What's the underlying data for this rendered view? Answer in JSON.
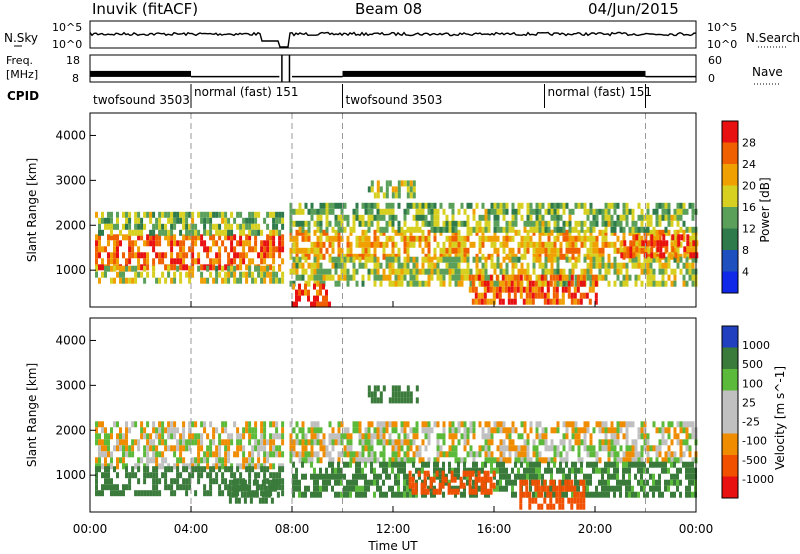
{
  "header": {
    "station": "Inuvik (fitACF)",
    "beam": "Beam 08",
    "date": "04/Jun/2015"
  },
  "strips": {
    "nsky": {
      "label": "N.Sky",
      "ticks": [
        "10^5",
        "10^0"
      ],
      "right_label": "N.Search",
      "right_ticks": [
        "10^5",
        "10^0"
      ]
    },
    "freq": {
      "label_lines": [
        "Freq.",
        "[MHz]"
      ],
      "ticks": [
        "18",
        "8"
      ],
      "right_label": "Nave",
      "right_ticks": [
        "60",
        "0"
      ]
    },
    "cpid": {
      "label": "CPID"
    }
  },
  "chart_data": [
    {
      "type": "table",
      "name": "cpid_segments",
      "rows": [
        {
          "text": "twofsound 3503",
          "start_hour": 0,
          "end_hour": 4
        },
        {
          "text": "normal (fast) 151",
          "start_hour": 4,
          "end_hour": 7.8
        },
        {
          "text": "twofsound 3503",
          "start_hour": 10,
          "end_hour": 18
        },
        {
          "text": "normal (fast) 151",
          "start_hour": 18,
          "end_hour": 22
        }
      ]
    },
    {
      "type": "line",
      "name": "frequency",
      "x_unit": "hour UT",
      "segments": [
        {
          "x": [
            0,
            4
          ],
          "y": 11,
          "style": "dense"
        },
        {
          "x": [
            4,
            7.5
          ],
          "y": 10,
          "style": "flat"
        },
        {
          "x": [
            8,
            10
          ],
          "y": 10,
          "style": "flat"
        },
        {
          "x": [
            10,
            22
          ],
          "y": 11,
          "style": "dense"
        },
        {
          "x": [
            22,
            24
          ],
          "y": 10,
          "style": "flat"
        }
      ],
      "ylim": [
        8,
        18
      ]
    },
    {
      "type": "heatmap",
      "name": "power",
      "ylabel": "Slant Range [km]",
      "xlim": [
        0,
        24
      ],
      "ylim": [
        180,
        4500
      ],
      "yticks": [
        1000,
        2000,
        3000,
        4000
      ],
      "colorbar": {
        "label": "Power [dB]",
        "ticks": [
          "4",
          "8",
          "12",
          "16",
          "20",
          "24",
          "28"
        ],
        "range": [
          0,
          30
        ]
      },
      "data_gap_hours": [
        7.6,
        7.9
      ],
      "bands": [
        {
          "x": [
            0.2,
            7.6
          ],
          "r": [
            1100,
            1800
          ],
          "value": 24
        },
        {
          "x": [
            0.2,
            7.6
          ],
          "r": [
            1800,
            2300
          ],
          "value": 14
        },
        {
          "x": [
            0.2,
            7.6
          ],
          "r": [
            700,
            1100
          ],
          "value": 16
        },
        {
          "x": [
            7.9,
            24
          ],
          "r": [
            1300,
            1900
          ],
          "value": 20
        },
        {
          "x": [
            7.9,
            24
          ],
          "r": [
            1900,
            2500
          ],
          "value": 14
        },
        {
          "x": [
            7.9,
            24
          ],
          "r": [
            700,
            1300
          ],
          "value": 16
        },
        {
          "x": [
            8.0,
            9.5
          ],
          "r": [
            200,
            700
          ],
          "value": 26
        },
        {
          "x": [
            15.0,
            20.0
          ],
          "r": [
            300,
            900
          ],
          "value": 24
        },
        {
          "x": [
            11.0,
            13.0
          ],
          "r": [
            2600,
            3000
          ],
          "value": 16
        },
        {
          "x": [
            21.0,
            24.0
          ],
          "r": [
            1350,
            1800
          ],
          "value": 26
        }
      ]
    },
    {
      "type": "heatmap",
      "name": "velocity",
      "ylabel": "Slant Range [km]",
      "xlabel": "Time UT",
      "xlim": [
        0,
        24
      ],
      "ylim": [
        180,
        4500
      ],
      "yticks": [
        1000,
        2000,
        3000,
        4000
      ],
      "xticks": [
        "00:00",
        "04:00",
        "08:00",
        "12:00",
        "16:00",
        "20:00",
        "00:00"
      ],
      "colorbar": {
        "label": "Velocity [m s^-1]",
        "ticks": [
          "1000",
          "500",
          "100",
          "25",
          "-25",
          "-100",
          "-500",
          "-1000"
        ]
      },
      "data_gap_hours": [
        7.6,
        7.9
      ],
      "bands": [
        {
          "x": [
            0.2,
            7.6
          ],
          "r": [
            1200,
            2200
          ],
          "value": 0
        },
        {
          "x": [
            0.2,
            7.6
          ],
          "r": [
            600,
            1200
          ],
          "value": 200
        },
        {
          "x": [
            5.5,
            7.5
          ],
          "r": [
            400,
            900
          ],
          "value": 300
        },
        {
          "x": [
            7.9,
            24
          ],
          "r": [
            1300,
            2200
          ],
          "value": 0
        },
        {
          "x": [
            8.0,
            24
          ],
          "r": [
            500,
            1300
          ],
          "value": 150
        },
        {
          "x": [
            12.5,
            16.0
          ],
          "r": [
            600,
            1100
          ],
          "value": -300
        },
        {
          "x": [
            17.0,
            19.5
          ],
          "r": [
            300,
            900
          ],
          "value": -400
        },
        {
          "x": [
            11.0,
            13.0
          ],
          "r": [
            2600,
            3000
          ],
          "value": 200
        }
      ]
    }
  ],
  "colors": {
    "power_scale": [
      "#1028e8",
      "#1e50c0",
      "#2e7a4a",
      "#5aa05a",
      "#d8d020",
      "#f0a000",
      "#f06000",
      "#e81010"
    ],
    "velocity_scale": [
      "#2040c0",
      "#3a7a3a",
      "#5cba3a",
      "#c0c0c0",
      "#f08c00",
      "#f05000",
      "#e81010"
    ],
    "ground_scatter": "#c0c0c0"
  }
}
